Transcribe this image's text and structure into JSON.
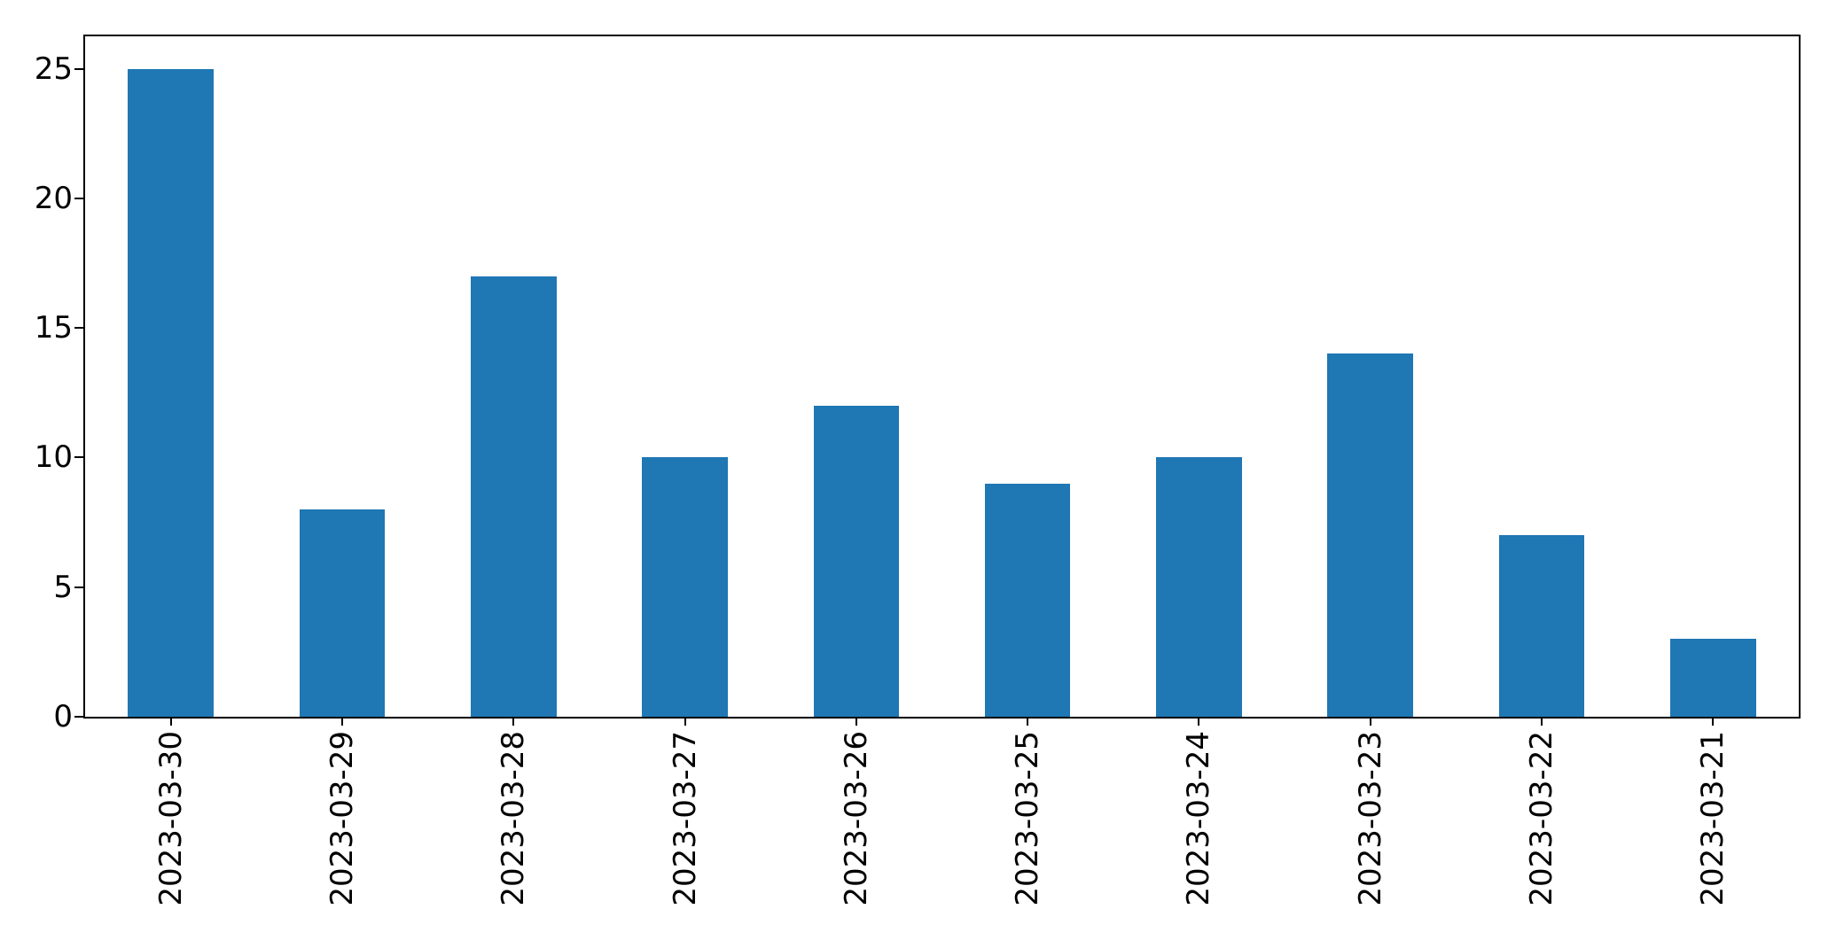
{
  "chart_data": {
    "type": "bar",
    "title": "",
    "xlabel": "",
    "ylabel": "",
    "categories": [
      "2023-03-30",
      "2023-03-29",
      "2023-03-28",
      "2023-03-27",
      "2023-03-26",
      "2023-03-25",
      "2023-03-24",
      "2023-03-23",
      "2023-03-22",
      "2023-03-21"
    ],
    "values": [
      25,
      8,
      17,
      10,
      12,
      9,
      10,
      14,
      7,
      3
    ],
    "ylim": [
      0,
      26.25
    ],
    "yticks": [
      "0",
      "5",
      "10",
      "15",
      "20",
      "25"
    ],
    "x_tick_rotation_deg": 90,
    "bar_width_fraction": 0.5,
    "grid": false,
    "legend": false,
    "bar_color": "#1f77b4",
    "axis_color": "#000000",
    "text_color": "#000000",
    "background_color": "#ffffff"
  }
}
